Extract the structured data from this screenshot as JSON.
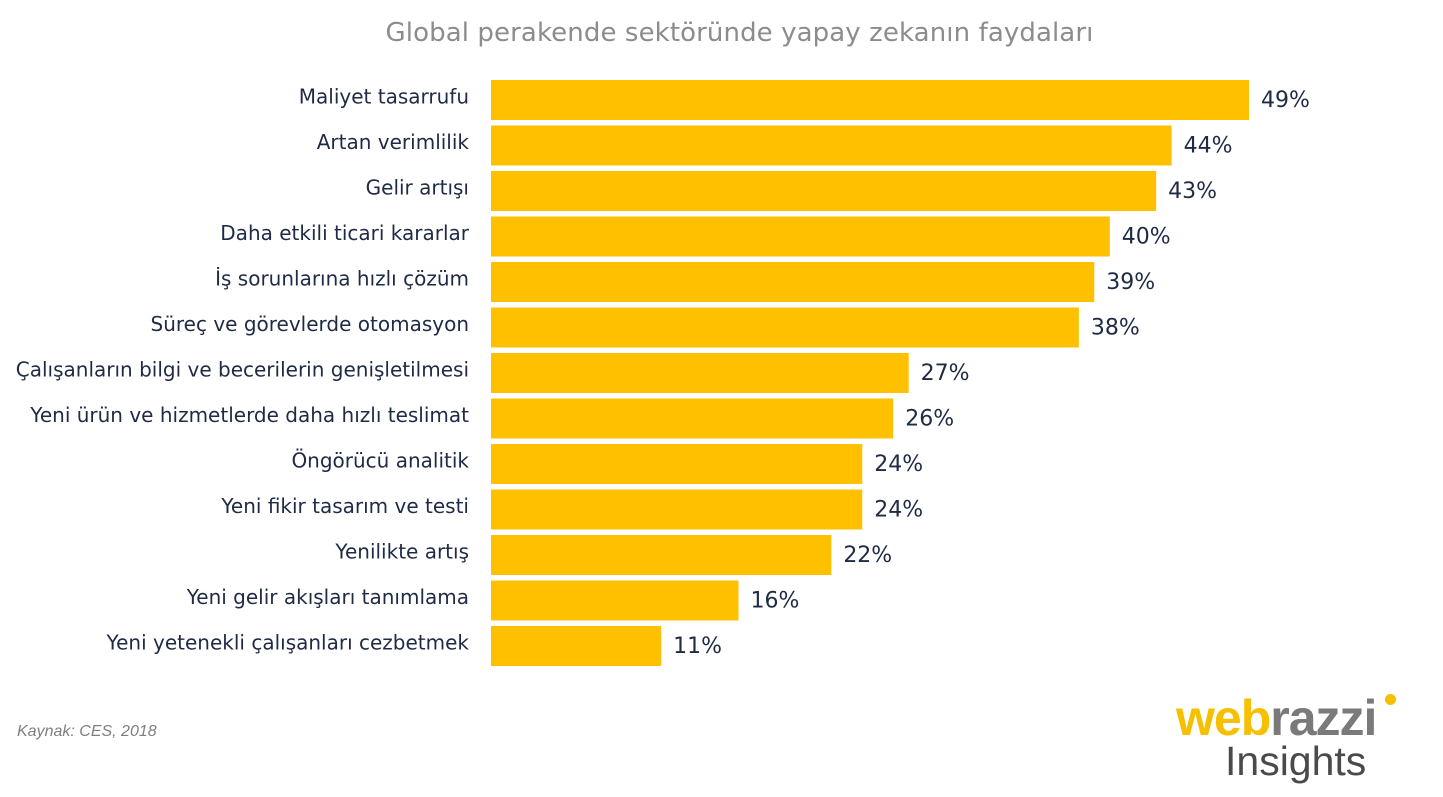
{
  "chart_data": {
    "type": "bar",
    "orientation": "horizontal",
    "title": "Global perakende sektöründe yapay zekanın faydaları",
    "categories": [
      "Maliyet tasarrufu",
      "Artan verimlilik",
      "Gelir artışı",
      "Daha etkili ticari kararlar",
      "İş sorunlarına hızlı çözüm",
      "Süreç ve görevlerde otomasyon",
      "Çalışanların bilgi ve becerilerin genişletilmesi",
      "Yeni ürün ve hizmetlerde daha hızlı teslimat",
      "Öngörücü analitik",
      "Yeni fikir tasarım ve testi",
      "Yenilikte artış",
      "Yeni gelir akışları tanımlama",
      "Yeni yetenekli çalışanları cezbetmek"
    ],
    "values": [
      49,
      44,
      43,
      40,
      39,
      38,
      27,
      26,
      24,
      24,
      22,
      16,
      11
    ],
    "value_labels": [
      "49%",
      "44%",
      "43%",
      "40%",
      "39%",
      "38%",
      "27%",
      "26%",
      "24%",
      "24%",
      "22%",
      "16%",
      "11%"
    ],
    "unit": "%",
    "xlabel": "",
    "ylabel": "",
    "xlim": [
      0,
      49
    ],
    "bar_color": "#ffc000",
    "grid": false
  },
  "source": "Kaynak: CES, 2018",
  "logo": {
    "web": "web",
    "razzi": "razzi",
    "insights": "Insights",
    "colors": {
      "web": "#f6c000",
      "razzi": "#7a7a7a",
      "insights": "#4a4a4a"
    }
  }
}
